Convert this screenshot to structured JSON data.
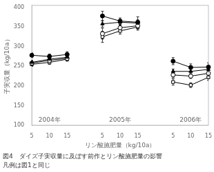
{
  "chart_data": {
    "type": "line",
    "title": "図4　ダイズ子実収量に及ぼす前作とリン酸施肥量の影響",
    "subtitle": "凡例は図1と同じ",
    "xlabel": "リン酸施肥量（kg/10a）",
    "ylabel": "子実収量（kg/10a）",
    "categories": [
      "5",
      "10",
      "15",
      null,
      "5",
      "10",
      "15",
      null,
      "5",
      "10",
      "15"
    ],
    "annotations": [
      "2004年",
      "2005年",
      "2006年"
    ],
    "ylim": [
      100,
      405
    ],
    "yticks": [
      100,
      150,
      200,
      250,
      300,
      350,
      400
    ],
    "grid": false,
    "series": [
      {
        "marker": "circle",
        "color": "#000000",
        "values": [
          278,
          275,
          280,
          null,
          378,
          365,
          362,
          null,
          263,
          247,
          248
        ],
        "errors": [
          6,
          6,
          7,
          null,
          12,
          8,
          14,
          null,
          9,
          9,
          11
        ]
      },
      {
        "marker": "triangle",
        "color": "#000000",
        "values": [
          260,
          268,
          273,
          null,
          358,
          362,
          360,
          null,
          237,
          237,
          242
        ],
        "errors": [
          5,
          5,
          5,
          null,
          8,
          7,
          8,
          null,
          6,
          6,
          7
        ]
      },
      {
        "marker": "circle",
        "color": "#ffffff",
        "values": [
          258,
          265,
          270,
          null,
          333,
          348,
          353,
          null,
          228,
          225,
          232
        ],
        "errors": [
          5,
          5,
          5,
          null,
          14,
          8,
          8,
          null,
          7,
          6,
          7
        ]
      },
      {
        "marker": "square",
        "color": "#ffffff",
        "values": [
          255,
          260,
          268,
          null,
          325,
          340,
          350,
          null,
          210,
          202,
          222
        ],
        "errors": [
          5,
          5,
          5,
          null,
          14,
          8,
          8,
          null,
          8,
          6,
          8
        ]
      }
    ]
  }
}
